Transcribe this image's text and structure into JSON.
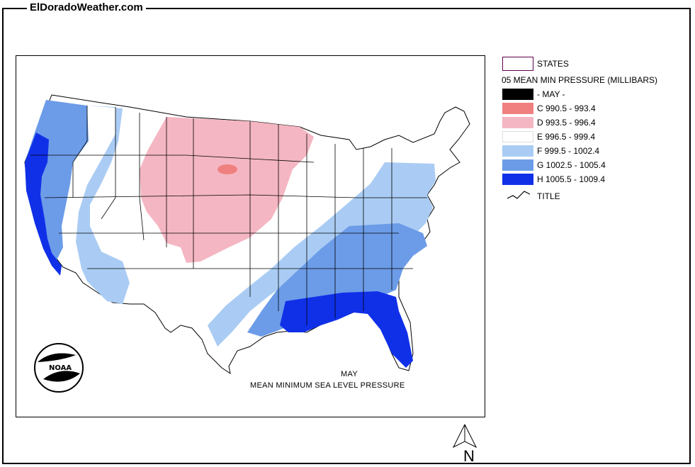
{
  "site": {
    "title": "ElDoradoWeather.com"
  },
  "map": {
    "caption_month": "MAY",
    "caption_title": "MEAN MINIMUM SEA LEVEL PRESSURE",
    "logo_text": "NOAA"
  },
  "legend": {
    "states_label": "STATES",
    "title": "05 MEAN MIN PRESSURE (MILLIBARS)",
    "title_symbol_label": "TITLE",
    "classes": [
      {
        "label": "- MAY -",
        "color": "#000000"
      },
      {
        "label": "C 990.5 - 993.4",
        "color": "#f08080"
      },
      {
        "label": "D 993.5 - 996.4",
        "color": "#f4b6c2"
      },
      {
        "label": "E 996.5 - 999.4",
        "color": "#ffffff"
      },
      {
        "label": "F 999.5 - 1002.4",
        "color": "#aaccf4"
      },
      {
        "label": "G 1002.5 - 1005.4",
        "color": "#6c9ce8"
      },
      {
        "label": "H 1005.5 - 1009.4",
        "color": "#1030e8"
      }
    ]
  },
  "compass": {
    "label": "N"
  }
}
